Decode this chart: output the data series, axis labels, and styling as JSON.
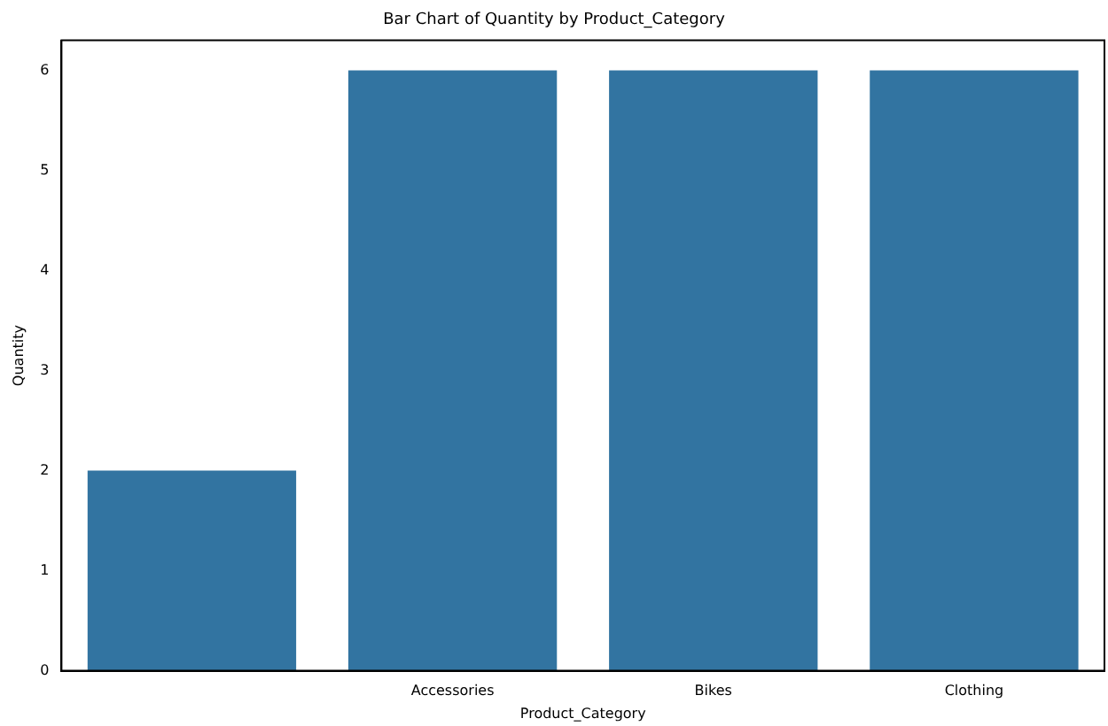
{
  "chart_data": {
    "type": "bar",
    "title": "Bar Chart of Quantity by Product_Category",
    "xlabel": "Product_Category",
    "ylabel": "Quantity",
    "categories": [
      null,
      "Accessories",
      "Bikes",
      "Clothing"
    ],
    "values": [
      2,
      6,
      6,
      6
    ],
    "color": "#3274a1",
    "ylim": [
      0,
      6.3
    ],
    "yticks": [
      0,
      1,
      2,
      3,
      4,
      5,
      6
    ],
    "grid": false,
    "legend": false
  }
}
